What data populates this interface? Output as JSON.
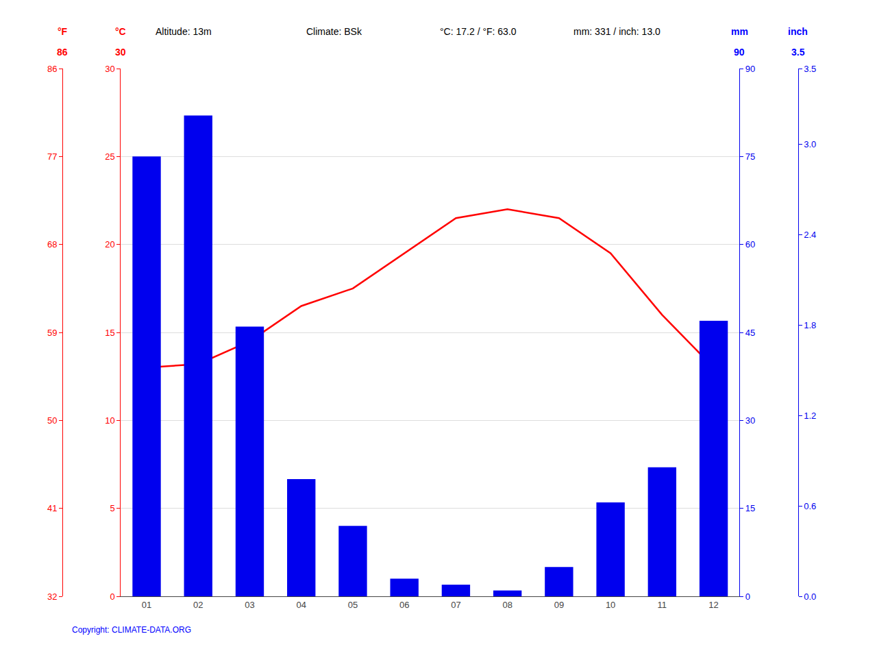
{
  "chart_data": {
    "type": "bar",
    "categories": [
      "01",
      "02",
      "03",
      "04",
      "05",
      "06",
      "07",
      "08",
      "09",
      "10",
      "11",
      "12"
    ],
    "series": [
      {
        "type": "bar",
        "axis": "y2",
        "color": "#0000ee",
        "values": [
          75,
          82,
          46,
          20,
          12,
          3,
          2,
          1,
          5,
          16,
          22,
          47
        ]
      },
      {
        "type": "line",
        "color": "#ff0000",
        "values": [
          13.0,
          13.2,
          14.5,
          16.5,
          17.5,
          19.5,
          21.5,
          22.0,
          21.5,
          19.5,
          16.0,
          13.0
        ]
      }
    ],
    "ylim": [
      0,
      30
    ],
    "yticks": [
      0,
      5,
      10,
      15,
      20,
      25,
      30
    ],
    "y2lim": [
      0,
      90
    ],
    "y2ticks": [
      0,
      15,
      30,
      45,
      60,
      75,
      90
    ],
    "y3lim": [
      32,
      86
    ],
    "y3ticks": [
      32,
      41,
      50,
      59,
      68,
      77,
      86
    ],
    "y4lim": [
      0,
      3.5
    ],
    "y4ticks": [
      {
        "value": 0,
        "label": "0.0"
      },
      0.6,
      1.2,
      1.8,
      2.4,
      {
        "value": 3,
        "label": "3.0"
      },
      3.5
    ],
    "grid": true,
    "annotations": [
      {
        "text": "°F",
        "color": "red"
      },
      {
        "text": "°C",
        "color": "red"
      },
      {
        "text": "Altitude: 13m",
        "color": "black"
      },
      {
        "text": "Climate: BSk",
        "color": "black"
      },
      {
        "text": "°C: 17.2 / °F: 63.0",
        "color": "black"
      },
      {
        "text": "mm: 331 / inch: 13.0",
        "color": "black"
      },
      {
        "text": "mm",
        "color": "blue"
      },
      {
        "text": "inch",
        "color": "blue"
      },
      {
        "text": "86",
        "color": "red"
      },
      {
        "text": "30",
        "color": "red"
      },
      {
        "text": "90",
        "color": "blue"
      },
      {
        "text": "3.5",
        "color": "blue"
      },
      {
        "text": "Copyright: CLIMATE-DATA.ORG",
        "color": "blue"
      }
    ]
  }
}
